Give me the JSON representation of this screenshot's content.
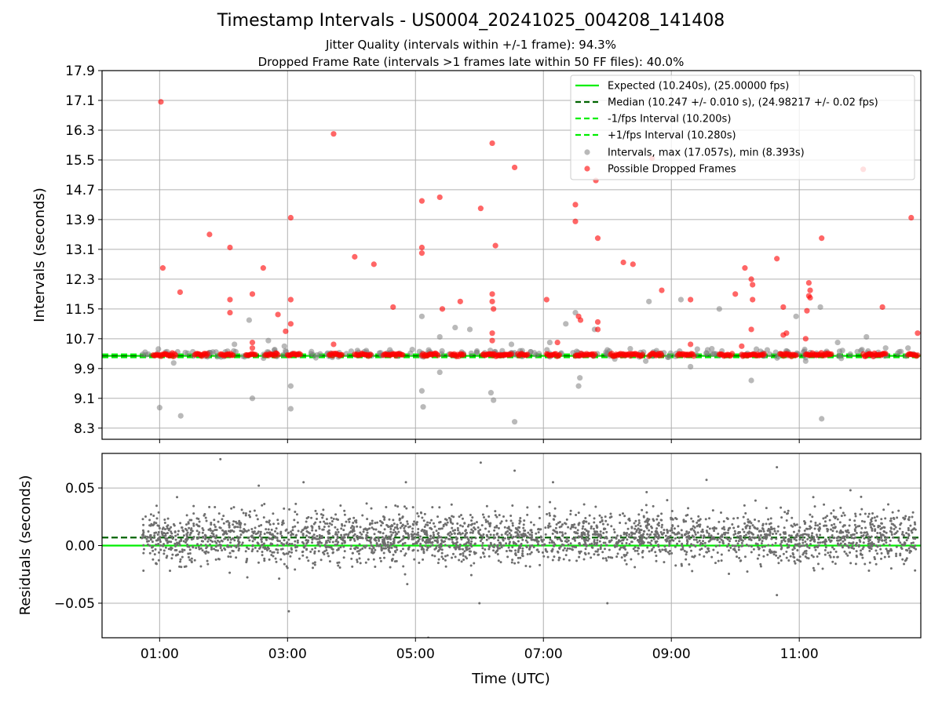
{
  "figure": {
    "title": "Timestamp Intervals - US0004_20241025_004208_141408",
    "subtitle_jitter": "Jitter Quality (intervals within +/-1 frame): 94.3%",
    "subtitle_dropped": "Dropped Frame Rate (intervals >1 frames late within 50 FF files): 40.0%"
  },
  "colors": {
    "expected": "#00ee00",
    "median": "#006400",
    "interval_band": "#00ee00",
    "intervals": "#808080",
    "dropped": "#ff0000",
    "residuals": "#6e6e6e",
    "grid": "#b0b0b0"
  },
  "chart_data": [
    {
      "type": "scatter",
      "panel": "intervals",
      "xlabel": "",
      "ylabel": "Intervals (seconds)",
      "x_unit": "hours UTC",
      "xlim": [
        0.1,
        12.9
      ],
      "ylim": [
        8.0,
        17.9
      ],
      "yticks": [
        8.3,
        9.1,
        9.9,
        10.7,
        11.5,
        12.3,
        13.1,
        13.9,
        14.7,
        15.5,
        16.3,
        17.1,
        17.9
      ],
      "ytick_labels": [
        "8.3",
        "9.1",
        "9.9",
        "10.7",
        "11.5",
        "12.3",
        "13.1",
        "13.9",
        "14.7",
        "15.5",
        "16.3",
        "17.1",
        "17.9"
      ],
      "grid": true,
      "legend_position": "top-right",
      "reference_lines": [
        {
          "name": "Expected (10.240s), (25.00000 fps)",
          "y": 10.24,
          "style": "solid"
        },
        {
          "name": "Median (10.247 +/- 0.010 s), (24.98217 +/- 0.02 fps)",
          "y": 10.247,
          "style": "dashed"
        },
        {
          "name": "-1/fps Interval (10.200s)",
          "y": 10.2,
          "style": "dashed"
        },
        {
          "name": "+1/fps Interval (10.280s)",
          "y": 10.28,
          "style": "dashed"
        }
      ],
      "series": [
        {
          "name": "Intervals, max (17.057s), min (8.393s)",
          "x_start": 0.72,
          "x_end": 12.83,
          "points": [
            [
              1.0,
              8.85
            ],
            [
              1.33,
              8.63
            ],
            [
              1.22,
              10.05
            ],
            [
              2.17,
              10.55
            ],
            [
              2.4,
              11.2
            ],
            [
              2.45,
              9.1
            ],
            [
              2.7,
              10.65
            ],
            [
              2.95,
              10.5
            ],
            [
              3.05,
              9.43
            ],
            [
              3.05,
              8.82
            ],
            [
              4.6,
              10.4
            ],
            [
              5.1,
              11.3
            ],
            [
              5.1,
              9.3
            ],
            [
              5.12,
              8.87
            ],
            [
              5.38,
              10.75
            ],
            [
              5.38,
              9.8
            ],
            [
              5.62,
              11.0
            ],
            [
              5.85,
              10.95
            ],
            [
              6.18,
              9.25
            ],
            [
              6.22,
              9.05
            ],
            [
              6.55,
              8.47
            ],
            [
              6.5,
              10.55
            ],
            [
              7.1,
              10.6
            ],
            [
              7.35,
              11.1
            ],
            [
              7.5,
              11.4
            ],
            [
              7.55,
              9.43
            ],
            [
              7.57,
              9.65
            ],
            [
              7.8,
              10.95
            ],
            [
              8.6,
              10.1
            ],
            [
              8.65,
              11.7
            ],
            [
              9.15,
              11.75
            ],
            [
              9.3,
              9.95
            ],
            [
              9.75,
              11.5
            ],
            [
              10.25,
              9.58
            ],
            [
              10.95,
              11.3
            ],
            [
              11.1,
              10.1
            ],
            [
              11.33,
              11.55
            ],
            [
              11.35,
              8.55
            ],
            [
              11.6,
              10.6
            ],
            [
              12.05,
              10.75
            ],
            [
              12.35,
              10.45
            ],
            [
              8.0,
              10.4
            ],
            [
              3.7,
              10.2
            ],
            [
              4.2,
              10.35
            ],
            [
              6.8,
              10.35
            ],
            [
              9.55,
              10.3
            ],
            [
              10.5,
              10.4
            ],
            [
              12.7,
              10.45
            ]
          ]
        },
        {
          "name": "Possible Dropped Frames",
          "clusters": [
            [
              0.9,
              1.25
            ],
            [
              1.55,
              1.75
            ],
            [
              1.95,
              2.15
            ],
            [
              2.35,
              2.5
            ],
            [
              2.65,
              2.85
            ],
            [
              3.0,
              3.2
            ],
            [
              3.65,
              3.85
            ],
            [
              4.05,
              4.3
            ],
            [
              4.5,
              4.8
            ],
            [
              5.1,
              5.35
            ],
            [
              5.55,
              5.75
            ],
            [
              6.05,
              6.5
            ],
            [
              6.6,
              6.75
            ],
            [
              7.05,
              7.25
            ],
            [
              7.5,
              7.8
            ],
            [
              8.05,
              8.55
            ],
            [
              8.65,
              8.85
            ],
            [
              9.1,
              9.35
            ],
            [
              9.75,
              9.95
            ],
            [
              10.1,
              10.45
            ],
            [
              10.7,
              10.95
            ],
            [
              11.1,
              11.5
            ],
            [
              12.0,
              12.35
            ],
            [
              12.7,
              12.85
            ]
          ],
          "points": [
            [
              1.02,
              17.06
            ],
            [
              1.05,
              12.6
            ],
            [
              1.32,
              11.95
            ],
            [
              1.78,
              13.5
            ],
            [
              2.1,
              13.15
            ],
            [
              2.1,
              11.75
            ],
            [
              2.1,
              11.4
            ],
            [
              2.45,
              11.9
            ],
            [
              2.62,
              12.6
            ],
            [
              2.45,
              10.6
            ],
            [
              2.45,
              10.45
            ],
            [
              2.85,
              11.35
            ],
            [
              3.05,
              13.95
            ],
            [
              3.05,
              11.75
            ],
            [
              3.05,
              11.1
            ],
            [
              2.97,
              10.9
            ],
            [
              3.72,
              16.2
            ],
            [
              3.72,
              10.55
            ],
            [
              4.05,
              12.9
            ],
            [
              4.35,
              12.7
            ],
            [
              4.65,
              11.55
            ],
            [
              5.1,
              14.4
            ],
            [
              5.1,
              13.15
            ],
            [
              5.1,
              13.0
            ],
            [
              5.38,
              14.5
            ],
            [
              5.42,
              11.5
            ],
            [
              5.7,
              11.7
            ],
            [
              6.02,
              14.2
            ],
            [
              6.2,
              15.95
            ],
            [
              6.25,
              13.2
            ],
            [
              6.2,
              11.9
            ],
            [
              6.2,
              11.7
            ],
            [
              6.22,
              11.5
            ],
            [
              6.2,
              10.85
            ],
            [
              6.2,
              10.65
            ],
            [
              6.55,
              15.3
            ],
            [
              7.05,
              11.75
            ],
            [
              7.22,
              10.6
            ],
            [
              7.5,
              14.3
            ],
            [
              7.5,
              13.85
            ],
            [
              7.55,
              11.3
            ],
            [
              7.58,
              11.2
            ],
            [
              7.82,
              14.95
            ],
            [
              7.85,
              13.4
            ],
            [
              7.85,
              11.15
            ],
            [
              7.85,
              10.95
            ],
            [
              8.25,
              12.75
            ],
            [
              8.4,
              12.7
            ],
            [
              8.7,
              15.55
            ],
            [
              8.85,
              12.0
            ],
            [
              9.3,
              11.75
            ],
            [
              9.3,
              10.55
            ],
            [
              10.0,
              11.9
            ],
            [
              10.1,
              10.5
            ],
            [
              10.15,
              12.6
            ],
            [
              10.25,
              12.3
            ],
            [
              10.27,
              12.15
            ],
            [
              10.27,
              11.75
            ],
            [
              10.25,
              10.95
            ],
            [
              10.65,
              12.85
            ],
            [
              10.75,
              11.55
            ],
            [
              10.75,
              10.8
            ],
            [
              10.8,
              10.85
            ],
            [
              11.15,
              12.2
            ],
            [
              11.17,
              12.0
            ],
            [
              11.15,
              11.85
            ],
            [
              11.17,
              11.8
            ],
            [
              11.12,
              11.45
            ],
            [
              11.1,
              10.7
            ],
            [
              11.35,
              13.4
            ],
            [
              12.0,
              15.25
            ],
            [
              12.3,
              11.55
            ],
            [
              12.75,
              13.95
            ],
            [
              12.85,
              10.85
            ]
          ]
        }
      ]
    },
    {
      "type": "scatter",
      "panel": "residuals",
      "xlabel": "Time (UTC)",
      "ylabel": "Residuals (seconds)",
      "x_unit": "hours UTC",
      "xlim": [
        0.1,
        12.9
      ],
      "ylim": [
        -0.08,
        0.08
      ],
      "xticks": [
        1,
        3,
        5,
        7,
        9,
        11
      ],
      "xtick_labels": [
        "01:00",
        "03:00",
        "05:00",
        "07:00",
        "09:00",
        "11:00"
      ],
      "yticks": [
        -0.05,
        0.0,
        0.05
      ],
      "ytick_labels": [
        "−0.05",
        "0.00",
        "0.05"
      ],
      "grid": true,
      "reference_lines": [
        {
          "name": "Expected",
          "y": 0.0,
          "style": "solid"
        },
        {
          "name": "Median",
          "y": 0.007,
          "style": "dashed"
        }
      ],
      "series": [
        {
          "name": "Residuals",
          "x_start": 0.72,
          "x_end": 12.83,
          "count": 3000,
          "center": 0.007,
          "spread": 0.011,
          "outliers": [
            [
              1.95,
              0.075
            ],
            [
              3.02,
              -0.057
            ],
            [
              6.02,
              0.072
            ],
            [
              6.55,
              0.065
            ],
            [
              10.65,
              0.068
            ],
            [
              5.2,
              -0.08
            ],
            [
              6.0,
              -0.05
            ],
            [
              8.0,
              -0.05
            ],
            [
              10.65,
              -0.043
            ],
            [
              2.55,
              0.052
            ],
            [
              3.25,
              0.055
            ],
            [
              4.85,
              0.055
            ],
            [
              7.15,
              0.055
            ],
            [
              9.55,
              0.057
            ],
            [
              11.8,
              0.048
            ]
          ]
        }
      ]
    }
  ]
}
